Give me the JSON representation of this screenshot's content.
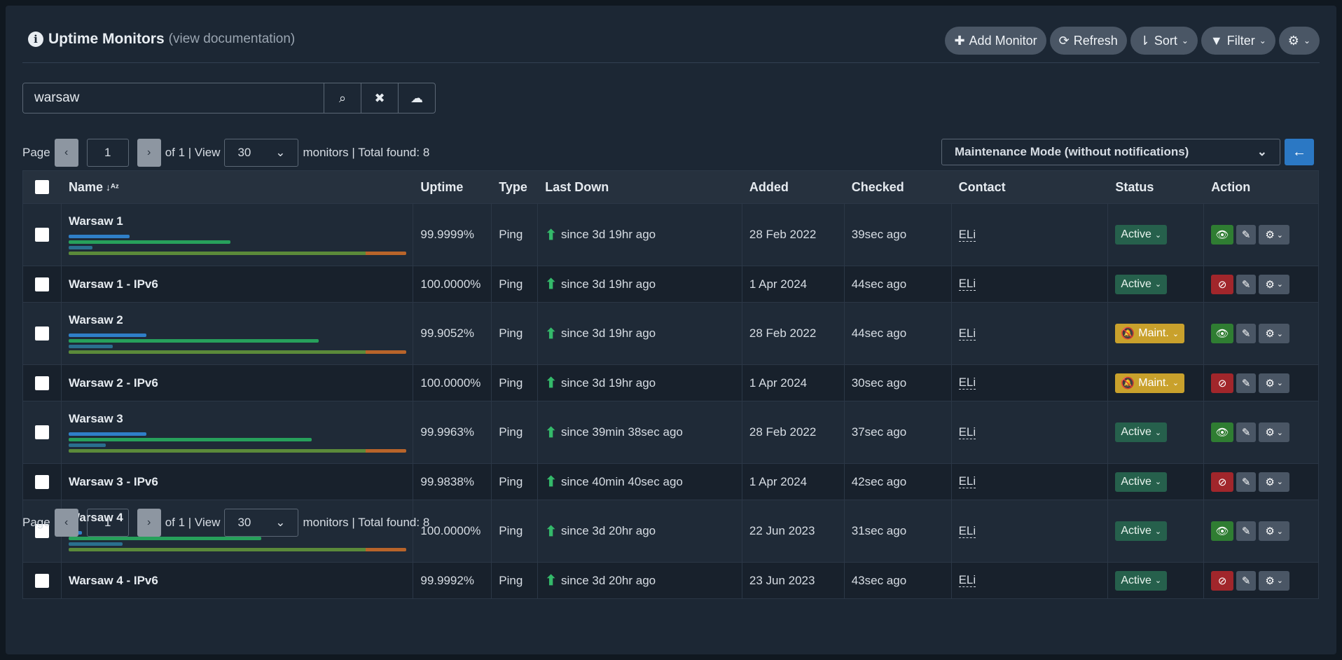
{
  "header": {
    "title": "Uptime Monitors",
    "doc_link": "(view documentation)",
    "buttons": {
      "add": "Add Monitor",
      "refresh": "Refresh",
      "sort": "Sort",
      "filter": "Filter"
    }
  },
  "search": {
    "value": "warsaw"
  },
  "pager": {
    "label_page": "Page",
    "page": "1",
    "of_view": "of 1 | View",
    "per_page": "30",
    "summary": "monitors | Total found: 8"
  },
  "bulk": {
    "action": "Maintenance Mode (without notifications)"
  },
  "table": {
    "headers": [
      "Name",
      "Uptime",
      "Type",
      "Last Down",
      "Added",
      "Checked",
      "Contact",
      "Status",
      "Action"
    ],
    "rows": [
      {
        "name": "Warsaw 1",
        "uptime": "99.9999%",
        "type": "Ping",
        "last_down": "since 3d 19hr ago",
        "added": "28 Feb 2022",
        "checked": "39sec ago",
        "contact": "ELi",
        "status": "Active",
        "status_kind": "active",
        "visible": true,
        "bars": [
          0.18,
          0.48,
          0.07,
          1.0
        ]
      },
      {
        "name": "Warsaw 1 - IPv6",
        "uptime": "100.0000%",
        "type": "Ping",
        "last_down": "since 3d 19hr ago",
        "added": "1 Apr 2024",
        "checked": "44sec ago",
        "contact": "ELi",
        "status": "Active",
        "status_kind": "active",
        "visible": false
      },
      {
        "name": "Warsaw 2",
        "uptime": "99.9052%",
        "type": "Ping",
        "last_down": "since 3d 19hr ago",
        "added": "28 Feb 2022",
        "checked": "44sec ago",
        "contact": "ELi",
        "status": "Maint.",
        "status_kind": "maint",
        "visible": true,
        "bars": [
          0.23,
          0.74,
          0.13,
          1.0
        ]
      },
      {
        "name": "Warsaw 2 - IPv6",
        "uptime": "100.0000%",
        "type": "Ping",
        "last_down": "since 3d 19hr ago",
        "added": "1 Apr 2024",
        "checked": "30sec ago",
        "contact": "ELi",
        "status": "Maint.",
        "status_kind": "maint",
        "visible": false
      },
      {
        "name": "Warsaw 3",
        "uptime": "99.9963%",
        "type": "Ping",
        "last_down": "since 39min 38sec ago",
        "added": "28 Feb 2022",
        "checked": "37sec ago",
        "contact": "ELi",
        "status": "Active",
        "status_kind": "active",
        "visible": true,
        "bars": [
          0.23,
          0.72,
          0.11,
          1.0
        ]
      },
      {
        "name": "Warsaw 3 - IPv6",
        "uptime": "99.9838%",
        "type": "Ping",
        "last_down": "since 40min 40sec ago",
        "added": "1 Apr 2024",
        "checked": "42sec ago",
        "contact": "ELi",
        "status": "Active",
        "status_kind": "active",
        "visible": false
      },
      {
        "name": "Warsaw 4",
        "uptime": "100.0000%",
        "type": "Ping",
        "last_down": "since 3d 20hr ago",
        "added": "22 Jun 2023",
        "checked": "31sec ago",
        "contact": "ELi",
        "status": "Active",
        "status_kind": "active",
        "visible": true,
        "bars": [
          0.04,
          0.57,
          0.16,
          1.0
        ]
      },
      {
        "name": "Warsaw 4 - IPv6",
        "uptime": "99.9992%",
        "type": "Ping",
        "last_down": "since 3d 20hr ago",
        "added": "23 Jun 2023",
        "checked": "43sec ago",
        "contact": "ELi",
        "status": "Active",
        "status_kind": "active",
        "visible": false
      }
    ]
  },
  "colors": {
    "bar_blue": "#2f7fc8",
    "bar_green": "#27a05b",
    "bar_teal": "#2a6f8e",
    "bar_olive": "#5b8a3a",
    "bar_orange": "#b8642a"
  }
}
